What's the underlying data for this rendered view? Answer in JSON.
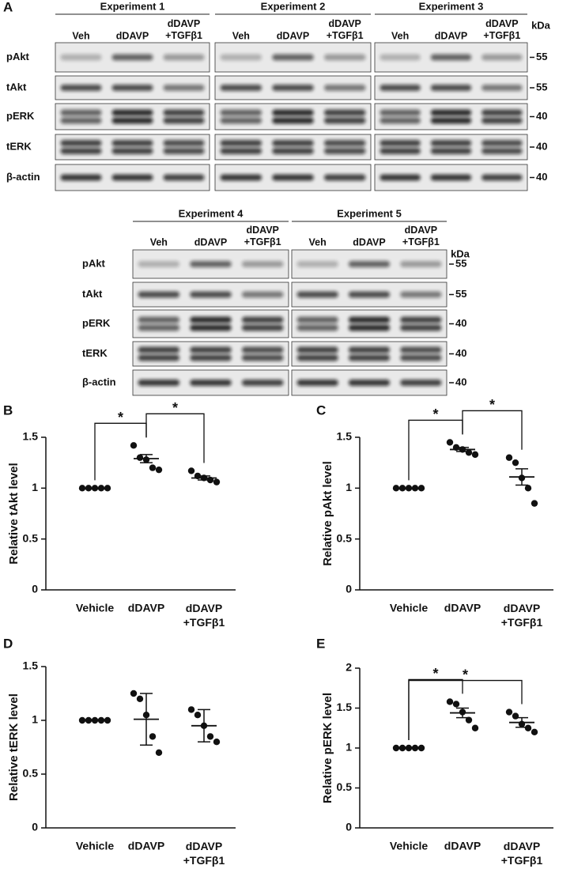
{
  "blots": {
    "label": "A",
    "kda_header": "kDa",
    "row_labels": [
      "pAkt",
      "tAkt",
      "pERK",
      "tERK",
      "β-actin"
    ],
    "kda": [
      55,
      55,
      40,
      40,
      40
    ],
    "lanes": [
      "Veh",
      "dDAVP",
      "dDAVP +TGFβ1"
    ],
    "groups": [
      {
        "experiments": [
          "Experiment 1",
          "Experiment 2",
          "Experiment 3"
        ]
      },
      {
        "experiments": [
          "Experiment 4",
          "Experiment 5"
        ]
      }
    ]
  },
  "chart_data": [
    {
      "type": "dot",
      "label": "B",
      "ylabel": "Relative tAkt level",
      "categories": [
        "Vehicle",
        "dDAVP",
        "dDAVP +TGFβ1"
      ],
      "points": [
        [
          1,
          1,
          1,
          1,
          1
        ],
        [
          1.42,
          1.3,
          1.28,
          1.2,
          1.18
        ],
        [
          1.17,
          1.12,
          1.1,
          1.08,
          1.06
        ]
      ],
      "means": [
        1,
        1.29,
        1.1
      ],
      "errors": [
        0,
        0.04,
        0.02
      ],
      "ylim": [
        0,
        1.5
      ],
      "yticks": [
        0,
        0.5,
        1,
        1.5
      ],
      "brackets": [
        {
          "groups": [
            "Vehicle",
            "dDAVP"
          ],
          "label": "*"
        },
        {
          "groups": [
            "dDAVP",
            "dDAVP +TGFβ1"
          ],
          "label": "*"
        }
      ]
    },
    {
      "type": "dot",
      "label": "C",
      "ylabel": "Relative pAkt level",
      "categories": [
        "Vehicle",
        "dDAVP",
        "dDAVP +TGFβ1"
      ],
      "points": [
        [
          1,
          1,
          1,
          1,
          1
        ],
        [
          1.45,
          1.4,
          1.38,
          1.35,
          1.33
        ],
        [
          1.3,
          1.25,
          1.1,
          1.0,
          0.85
        ]
      ],
      "means": [
        1,
        1.38,
        1.11
      ],
      "errors": [
        0,
        0.02,
        0.08
      ],
      "ylim": [
        0,
        1.5
      ],
      "yticks": [
        0,
        0.5,
        1,
        1.5
      ],
      "brackets": [
        {
          "groups": [
            "Vehicle",
            "dDAVP"
          ],
          "label": "*"
        },
        {
          "groups": [
            "dDAVP",
            "dDAVP +TGFβ1"
          ],
          "label": "*"
        }
      ]
    },
    {
      "type": "dot",
      "label": "D",
      "ylabel": "Relative tERK level",
      "categories": [
        "Vehicle",
        "dDAVP",
        "dDAVP +TGFβ1"
      ],
      "points": [
        [
          1,
          1,
          1,
          1,
          1
        ],
        [
          1.25,
          1.2,
          1.05,
          0.85,
          0.7
        ],
        [
          1.1,
          1.05,
          0.95,
          0.85,
          0.8
        ]
      ],
      "means": [
        1,
        1.01,
        0.95
      ],
      "errors": [
        0,
        0.24,
        0.15
      ],
      "ylim": [
        0,
        1.5
      ],
      "yticks": [
        0,
        0.5,
        1,
        1.5
      ],
      "brackets": []
    },
    {
      "type": "dot",
      "label": "E",
      "ylabel": "Relative pERK level",
      "categories": [
        "Vehicle",
        "dDAVP",
        "dDAVP +TGFβ1"
      ],
      "points": [
        [
          1,
          1,
          1,
          1,
          1
        ],
        [
          1.58,
          1.55,
          1.45,
          1.35,
          1.25
        ],
        [
          1.45,
          1.4,
          1.3,
          1.25,
          1.2
        ]
      ],
      "means": [
        1,
        1.44,
        1.32
      ],
      "errors": [
        0,
        0.06,
        0.06
      ],
      "ylim": [
        0,
        2
      ],
      "yticks": [
        0,
        0.5,
        1,
        1.5,
        2
      ],
      "brackets": [
        {
          "groups": [
            "Vehicle",
            "dDAVP"
          ],
          "label": "*"
        },
        {
          "groups": [
            "Vehicle",
            "dDAVP +TGFβ1"
          ],
          "label": "*"
        }
      ]
    }
  ]
}
